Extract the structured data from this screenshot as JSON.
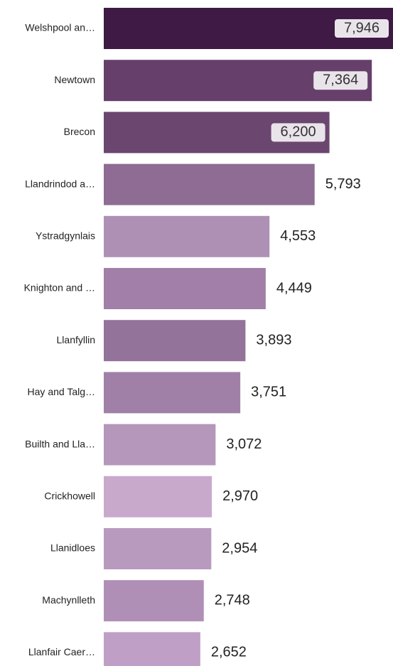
{
  "chart_data": {
    "type": "bar",
    "orientation": "horizontal",
    "title": "",
    "xlabel": "",
    "ylabel": "",
    "xlim": [
      0,
      7946
    ],
    "grid": false,
    "legend": "none",
    "categories": [
      "Welshpool an…",
      "Newtown",
      "Brecon",
      "Llandrindod a…",
      "Ystradgynlais",
      "Knighton and …",
      "Llanfyllin",
      "Hay and Talg…",
      "Builth and Lla…",
      "Crickhowell",
      "Llanidloes",
      "Machynlleth",
      "Llanfair Caer…"
    ],
    "values": [
      7946,
      7364,
      6200,
      5793,
      4553,
      4449,
      3893,
      3751,
      3072,
      2970,
      2954,
      2748,
      2652
    ],
    "value_labels": [
      "7,946",
      "7,364",
      "6,200",
      "5,793",
      "4,553",
      "4,449",
      "3,893",
      "3,751",
      "3,072",
      "2,970",
      "2,954",
      "2,748",
      "2,652"
    ],
    "colors": [
      "#3e1a45",
      "#673f6b",
      "#6b466f",
      "#8e6c93",
      "#ae90b5",
      "#a17fa8",
      "#93739a",
      "#a180a8",
      "#b597bb",
      "#c8a9cc",
      "#b99abf",
      "#b08fb6",
      "#bf9fc5"
    ]
  }
}
